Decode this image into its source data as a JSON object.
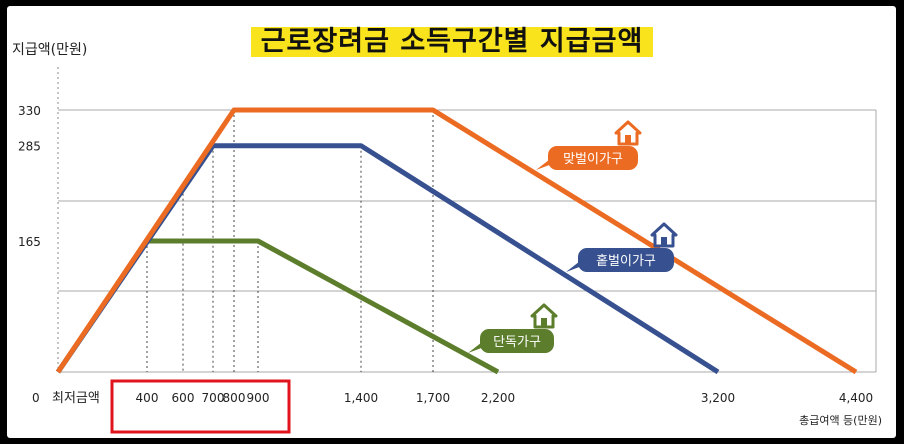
{
  "chart_data": {
    "type": "line",
    "title": "근로장려금 소득구간별 지급금액",
    "ylabel": "지급액(만원)",
    "xlabel": "총급여액 등(만원)",
    "xmin_label": "최저금액",
    "y_ticks": [
      "0",
      "165",
      "285",
      "330"
    ],
    "x_ticks": [
      "400",
      "600",
      "700",
      "800",
      "900",
      "1,400",
      "1,700",
      "2,200",
      "3,200",
      "4,400"
    ],
    "ylim": [
      0,
      330
    ],
    "series": [
      {
        "name": "맞벌이가구",
        "color": "#ec6b23",
        "points": [
          [
            0,
            0
          ],
          [
            800,
            330
          ],
          [
            1700,
            330
          ],
          [
            4400,
            0
          ]
        ]
      },
      {
        "name": "홑벌이가구",
        "color": "#37508f",
        "points": [
          [
            0,
            0
          ],
          [
            700,
            285
          ],
          [
            1400,
            285
          ],
          [
            3200,
            0
          ]
        ]
      },
      {
        "name": "단독가구",
        "color": "#5c7d2b",
        "points": [
          [
            0,
            0
          ],
          [
            400,
            165
          ],
          [
            900,
            165
          ],
          [
            2200,
            0
          ]
        ]
      }
    ],
    "highlight_range_label": "400 600 700 800 900"
  }
}
